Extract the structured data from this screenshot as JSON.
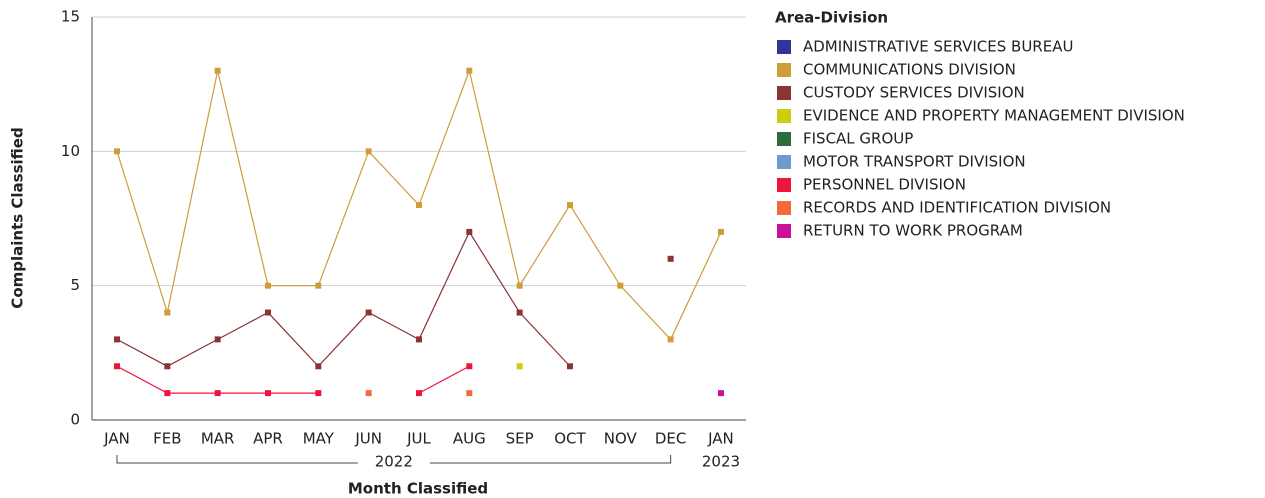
{
  "chart_data": {
    "type": "line",
    "x_label": "Month Classified",
    "y_label": "Complaints Classified",
    "legend_title": "Area-Division",
    "legend_position": "right",
    "grid": true,
    "categories": [
      "JAN",
      "FEB",
      "MAR",
      "APR",
      "MAY",
      "JUN",
      "JUL",
      "AUG",
      "SEP",
      "OCT",
      "NOV",
      "DEC",
      "JAN"
    ],
    "year_groups": [
      {
        "label": "2022",
        "start": 0,
        "end": 11
      },
      {
        "label": "2023",
        "start": 12,
        "end": 12
      }
    ],
    "ylim": [
      0,
      15
    ],
    "yticks": [
      0,
      5,
      10,
      15
    ],
    "series": [
      {
        "name": "ADMINISTRATIVE SERVICES BUREAU",
        "color": "#333399",
        "values": [
          null,
          null,
          null,
          null,
          null,
          null,
          null,
          null,
          null,
          null,
          null,
          null,
          null
        ]
      },
      {
        "name": "COMMUNICATIONS DIVISION",
        "color": "#cf9c3a",
        "values": [
          10,
          4,
          13,
          5,
          5,
          10,
          8,
          13,
          5,
          8,
          5,
          3,
          7
        ]
      },
      {
        "name": "CUSTODY SERVICES DIVISION",
        "color": "#8b3434",
        "values": [
          3,
          2,
          3,
          4,
          2,
          4,
          3,
          7,
          4,
          2,
          null,
          6,
          null
        ]
      },
      {
        "name": "EVIDENCE AND PROPERTY MANAGEMENT DIVISION",
        "color": "#cccc10",
        "values": [
          null,
          null,
          null,
          null,
          null,
          null,
          null,
          null,
          2,
          null,
          null,
          null,
          null
        ]
      },
      {
        "name": "FISCAL GROUP",
        "color": "#2f6b3b",
        "values": [
          null,
          null,
          null,
          null,
          null,
          null,
          null,
          null,
          null,
          null,
          null,
          null,
          null
        ]
      },
      {
        "name": "MOTOR TRANSPORT DIVISION",
        "color": "#6a9ccc",
        "values": [
          null,
          null,
          null,
          null,
          null,
          null,
          null,
          null,
          null,
          null,
          null,
          null,
          null
        ]
      },
      {
        "name": "PERSONNEL DIVISION",
        "color": "#f0143c",
        "values": [
          2,
          1,
          1,
          1,
          1,
          null,
          1,
          2,
          null,
          null,
          null,
          null,
          null
        ]
      },
      {
        "name": "RECORDS AND IDENTIFICATION DIVISION",
        "color": "#f26b3a",
        "values": [
          null,
          null,
          null,
          null,
          null,
          1,
          null,
          1,
          null,
          null,
          null,
          null,
          null
        ]
      },
      {
        "name": "RETURN TO WORK PROGRAM",
        "color": "#c8109a",
        "values": [
          null,
          null,
          null,
          null,
          null,
          null,
          null,
          null,
          null,
          null,
          null,
          null,
          1
        ]
      }
    ]
  }
}
